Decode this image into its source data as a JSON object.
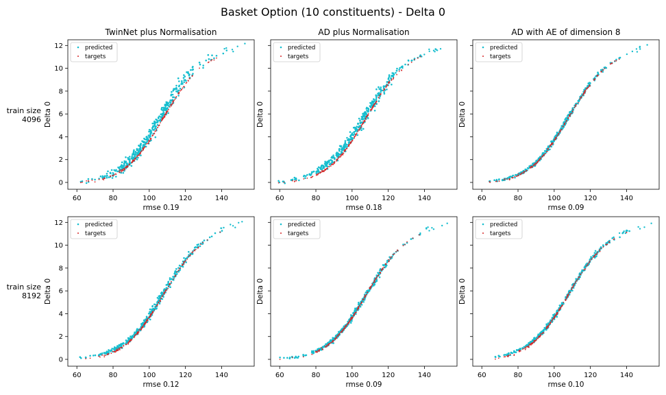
{
  "title": "Basket Option (10 constituents) - Delta 0",
  "row_labels": [
    {
      "line1": "train size",
      "line2": "4096"
    },
    {
      "line1": "train size",
      "line2": "8192"
    }
  ],
  "colors": {
    "predicted": "#17becf",
    "targets": "#d62728"
  },
  "chart_data": [
    {
      "type": "scatter",
      "row": 0,
      "col": 0,
      "title": "TwinNet plus Normalisation",
      "xlabel": "rmse 0.19",
      "ylabel": "Delta 0",
      "xlim": [
        55,
        158
      ],
      "ylim": [
        -0.6,
        12.5
      ],
      "xticks": [
        60,
        80,
        100,
        120,
        140
      ],
      "yticks": [
        0,
        2,
        4,
        6,
        8,
        10,
        12
      ],
      "legend": "top-left",
      "legend_entries": [
        "predicted",
        "targets"
      ],
      "noise": 0.35,
      "bias": 0.25,
      "seed": 11,
      "series": [
        {
          "name": "targets",
          "x": [
            60,
            65,
            70,
            75,
            80,
            85,
            90,
            95,
            100,
            105,
            110,
            115,
            120,
            125,
            130,
            135,
            140,
            145,
            154
          ],
          "y": [
            0.02,
            0.06,
            0.15,
            0.32,
            0.62,
            1.05,
            1.68,
            2.55,
            3.65,
            4.9,
            6.25,
            7.5,
            8.65,
            9.55,
            10.25,
            10.75,
            11.15,
            11.45,
            11.8
          ]
        },
        {
          "name": "predicted",
          "x": [
            60,
            65,
            70,
            75,
            80,
            85,
            90,
            95,
            100,
            105,
            110,
            115,
            120,
            125,
            130,
            135,
            140,
            145,
            154
          ],
          "y": [
            0.05,
            0.1,
            0.22,
            0.42,
            0.78,
            1.3,
            2.0,
            2.95,
            4.1,
            5.4,
            6.75,
            8.0,
            9.1,
            9.95,
            10.55,
            10.95,
            11.3,
            11.55,
            11.9
          ]
        }
      ]
    },
    {
      "type": "scatter",
      "row": 0,
      "col": 1,
      "title": "AD plus Normalisation",
      "xlabel": "rmse 0.18",
      "ylabel": "Delta 0",
      "xlim": [
        55,
        158
      ],
      "ylim": [
        -0.6,
        12.5
      ],
      "xticks": [
        60,
        80,
        100,
        120,
        140
      ],
      "yticks": [
        0,
        2,
        4,
        6,
        8,
        10,
        12
      ],
      "legend": "top-left",
      "legend_entries": [
        "predicted",
        "targets"
      ],
      "noise": 0.3,
      "bias": 0.2,
      "seed": 23,
      "series": [
        {
          "name": "targets",
          "x": [
            60,
            65,
            70,
            75,
            80,
            85,
            90,
            95,
            100,
            105,
            110,
            115,
            120,
            125,
            130,
            135,
            140,
            145,
            154
          ],
          "y": [
            0.02,
            0.06,
            0.15,
            0.32,
            0.62,
            1.05,
            1.68,
            2.55,
            3.65,
            4.9,
            6.25,
            7.5,
            8.65,
            9.55,
            10.25,
            10.75,
            11.15,
            11.45,
            11.8
          ]
        },
        {
          "name": "predicted",
          "x": [
            60,
            65,
            70,
            75,
            80,
            85,
            90,
            95,
            100,
            105,
            110,
            115,
            120,
            125,
            130,
            135,
            140,
            145,
            154
          ],
          "y": [
            0.08,
            0.18,
            0.35,
            0.6,
            0.95,
            1.45,
            2.1,
            2.95,
            4.0,
            5.2,
            6.5,
            7.75,
            8.85,
            9.75,
            10.4,
            10.85,
            11.25,
            11.55,
            11.85
          ]
        }
      ]
    },
    {
      "type": "scatter",
      "row": 0,
      "col": 2,
      "title": "AD with AE of dimension 8",
      "xlabel": "rmse 0.09",
      "ylabel": "Delta 0",
      "xlim": [
        55,
        158
      ],
      "ylim": [
        -0.6,
        12.5
      ],
      "xticks": [
        60,
        80,
        100,
        120,
        140
      ],
      "yticks": [
        0,
        2,
        4,
        6,
        8,
        10,
        12
      ],
      "legend": "top-left",
      "legend_entries": [
        "predicted",
        "targets"
      ],
      "noise": 0.12,
      "bias": 0.08,
      "seed": 37,
      "series": [
        {
          "name": "targets",
          "x": [
            60,
            65,
            70,
            75,
            80,
            85,
            90,
            95,
            100,
            105,
            110,
            115,
            120,
            125,
            130,
            135,
            140,
            145,
            154
          ],
          "y": [
            0.02,
            0.06,
            0.15,
            0.32,
            0.62,
            1.05,
            1.68,
            2.55,
            3.65,
            4.9,
            6.25,
            7.5,
            8.65,
            9.55,
            10.25,
            10.75,
            11.15,
            11.45,
            11.8
          ]
        },
        {
          "name": "predicted",
          "x": [
            60,
            65,
            70,
            75,
            80,
            85,
            90,
            95,
            100,
            105,
            110,
            115,
            120,
            125,
            130,
            135,
            140,
            145,
            154
          ],
          "y": [
            0.04,
            0.1,
            0.2,
            0.38,
            0.7,
            1.13,
            1.75,
            2.62,
            3.72,
            4.97,
            6.32,
            7.57,
            8.7,
            9.6,
            10.3,
            10.8,
            11.2,
            11.5,
            11.9
          ]
        }
      ]
    },
    {
      "type": "scatter",
      "row": 1,
      "col": 0,
      "title": "",
      "xlabel": "rmse 0.12",
      "ylabel": "Delta 0",
      "xlim": [
        55,
        158
      ],
      "ylim": [
        -0.6,
        12.5
      ],
      "xticks": [
        60,
        80,
        100,
        120,
        140
      ],
      "yticks": [
        0,
        2,
        4,
        6,
        8,
        10,
        12
      ],
      "legend": "top-left",
      "legend_entries": [
        "predicted",
        "targets"
      ],
      "noise": 0.2,
      "bias": 0.12,
      "seed": 41,
      "series": [
        {
          "name": "targets",
          "x": [
            60,
            65,
            70,
            75,
            80,
            85,
            90,
            95,
            100,
            105,
            110,
            115,
            120,
            125,
            130,
            135,
            140,
            145,
            154
          ],
          "y": [
            0.02,
            0.06,
            0.15,
            0.32,
            0.62,
            1.05,
            1.68,
            2.55,
            3.65,
            4.9,
            6.25,
            7.5,
            8.65,
            9.55,
            10.25,
            10.75,
            11.15,
            11.45,
            11.8
          ]
        },
        {
          "name": "predicted",
          "x": [
            60,
            65,
            70,
            75,
            80,
            85,
            90,
            95,
            100,
            105,
            110,
            115,
            120,
            125,
            130,
            135,
            140,
            145,
            154
          ],
          "y": [
            0.1,
            0.2,
            0.32,
            0.5,
            0.82,
            1.25,
            1.85,
            2.7,
            3.8,
            5.05,
            6.38,
            7.6,
            8.72,
            9.6,
            10.3,
            10.8,
            11.2,
            11.5,
            11.85
          ]
        }
      ]
    },
    {
      "type": "scatter",
      "row": 1,
      "col": 1,
      "title": "",
      "xlabel": "rmse 0.09",
      "ylabel": "Delta 0",
      "xlim": [
        55,
        158
      ],
      "ylim": [
        -0.6,
        12.5
      ],
      "xticks": [
        60,
        80,
        100,
        120,
        140
      ],
      "yticks": [
        0,
        2,
        4,
        6,
        8,
        10,
        12
      ],
      "legend": "top-left",
      "legend_entries": [
        "predicted",
        "targets"
      ],
      "noise": 0.15,
      "bias": 0.06,
      "seed": 53,
      "series": [
        {
          "name": "targets",
          "x": [
            60,
            65,
            70,
            75,
            80,
            85,
            90,
            95,
            100,
            105,
            110,
            115,
            120,
            125,
            130,
            135,
            140,
            145,
            154
          ],
          "y": [
            0.02,
            0.06,
            0.15,
            0.32,
            0.62,
            1.05,
            1.68,
            2.55,
            3.65,
            4.9,
            6.25,
            7.5,
            8.65,
            9.55,
            10.25,
            10.75,
            11.15,
            11.45,
            11.8
          ]
        },
        {
          "name": "predicted",
          "x": [
            60,
            65,
            70,
            75,
            80,
            85,
            90,
            95,
            100,
            105,
            110,
            115,
            120,
            125,
            130,
            135,
            140,
            145,
            154
          ],
          "y": [
            0.05,
            0.12,
            0.24,
            0.42,
            0.72,
            1.15,
            1.76,
            2.6,
            3.7,
            4.92,
            6.25,
            7.5,
            8.62,
            9.55,
            10.3,
            10.85,
            11.25,
            11.55,
            11.85
          ]
        }
      ]
    },
    {
      "type": "scatter",
      "row": 1,
      "col": 2,
      "title": "",
      "xlabel": "rmse 0.10",
      "ylabel": "Delta 0",
      "xlim": [
        55,
        158
      ],
      "ylim": [
        -0.6,
        12.5
      ],
      "xticks": [
        60,
        80,
        100,
        120,
        140
      ],
      "yticks": [
        0,
        2,
        4,
        6,
        8,
        10,
        12
      ],
      "legend": "top-left",
      "legend_entries": [
        "predicted",
        "targets"
      ],
      "noise": 0.12,
      "bias": 0.1,
      "seed": 67,
      "series": [
        {
          "name": "targets",
          "x": [
            60,
            65,
            70,
            75,
            80,
            85,
            90,
            95,
            100,
            105,
            110,
            115,
            120,
            125,
            130,
            135,
            140,
            145,
            154
          ],
          "y": [
            0.02,
            0.06,
            0.15,
            0.32,
            0.62,
            1.05,
            1.68,
            2.55,
            3.65,
            4.9,
            6.25,
            7.5,
            8.65,
            9.55,
            10.25,
            10.75,
            11.15,
            11.45,
            11.8
          ]
        },
        {
          "name": "predicted",
          "x": [
            60,
            65,
            70,
            75,
            80,
            85,
            90,
            95,
            100,
            105,
            110,
            115,
            120,
            125,
            130,
            135,
            140,
            145,
            154
          ],
          "y": [
            0.06,
            0.14,
            0.27,
            0.47,
            0.78,
            1.2,
            1.8,
            2.65,
            3.73,
            4.97,
            6.3,
            7.55,
            8.68,
            9.58,
            10.28,
            10.78,
            11.18,
            11.48,
            11.85
          ]
        }
      ]
    }
  ]
}
